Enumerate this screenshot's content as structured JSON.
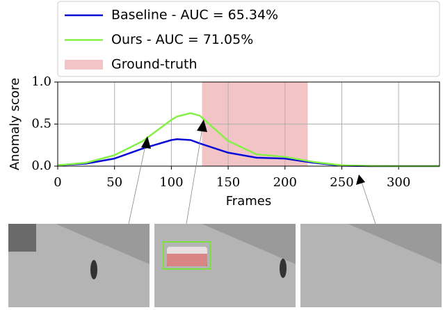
{
  "chart_data": {
    "type": "line",
    "x_label": "Frames",
    "y_label": "Anomaly score",
    "x": [
      0,
      25,
      50,
      75,
      100,
      105,
      117,
      125,
      150,
      175,
      200,
      225,
      250,
      275,
      300,
      336
    ],
    "series": [
      {
        "name": "Baseline - AUC = 65.34%",
        "color": "#0a0ad8",
        "values": [
          0.01,
          0.03,
          0.09,
          0.21,
          0.31,
          0.32,
          0.31,
          0.27,
          0.16,
          0.1,
          0.09,
          0.04,
          0.005,
          0,
          0,
          0
        ]
      },
      {
        "name": "Ours - AUC = 71.05%",
        "color": "#86f046",
        "values": [
          0.01,
          0.04,
          0.13,
          0.3,
          0.55,
          0.59,
          0.63,
          0.6,
          0.3,
          0.14,
          0.11,
          0.05,
          0.01,
          0.002,
          0,
          0
        ]
      }
    ],
    "spans": [
      {
        "name": "Ground-truth",
        "start": 127,
        "end": 220,
        "color": "#f2c4c6"
      }
    ],
    "xlim": [
      0,
      336
    ],
    "ylim": [
      0,
      1
    ],
    "xticks": [
      0,
      50,
      100,
      150,
      200,
      250,
      300
    ],
    "yticks": [
      {
        "value": 0,
        "label": "0.0"
      },
      {
        "value": 0.5,
        "label": "0.5"
      },
      {
        "value": 1,
        "label": "1.0"
      }
    ],
    "grid": true,
    "legend": "top"
  }
}
